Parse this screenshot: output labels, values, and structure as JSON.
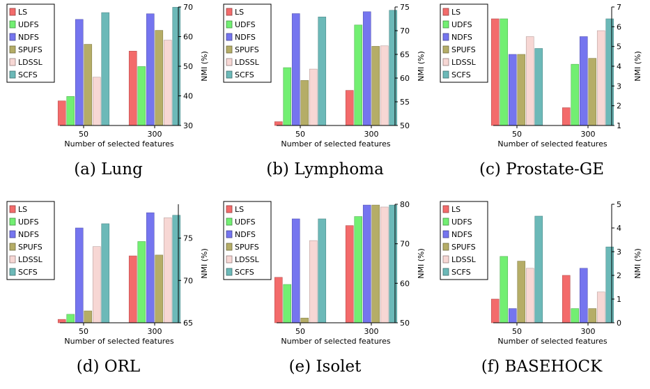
{
  "series_names": [
    "LS",
    "UDFS",
    "NDFS",
    "SPUFS",
    "LDSSL",
    "SCFS"
  ],
  "colors": [
    "#f36b6b",
    "#72ef72",
    "#7575ef",
    "#b5ad67",
    "#f7d7d4",
    "#6cb9b8"
  ],
  "xlabel": "Number of selected features",
  "ylabel": "NMI (%)",
  "chart_data": [
    {
      "type": "bar",
      "caption": "(a) Lung",
      "categories": [
        "50",
        "300"
      ],
      "series": [
        {
          "name": "LS",
          "values": [
            38.3,
            55.1
          ]
        },
        {
          "name": "UDFS",
          "values": [
            39.8,
            49.9
          ]
        },
        {
          "name": "NDFS",
          "values": [
            65.8,
            67.7
          ]
        },
        {
          "name": "SPUFS",
          "values": [
            57.4,
            62.1
          ]
        },
        {
          "name": "LDSSL",
          "values": [
            46.3,
            58.8
          ]
        },
        {
          "name": "SCFS",
          "values": [
            68.1,
            69.9
          ]
        }
      ],
      "ylim": [
        30,
        70
      ],
      "yticks": [
        30,
        40,
        50,
        60,
        70
      ],
      "legend": "top-left"
    },
    {
      "type": "bar",
      "caption": "(b) Lymphoma",
      "categories": [
        "50",
        "300"
      ],
      "series": [
        {
          "name": "LS",
          "values": [
            50.8,
            57.4
          ]
        },
        {
          "name": "UDFS",
          "values": [
            62.2,
            71.2
          ]
        },
        {
          "name": "NDFS",
          "values": [
            73.6,
            74.0
          ]
        },
        {
          "name": "SPUFS",
          "values": [
            59.5,
            66.7
          ]
        },
        {
          "name": "LDSSL",
          "values": [
            61.9,
            66.8
          ]
        },
        {
          "name": "SCFS",
          "values": [
            72.9,
            74.3
          ]
        }
      ],
      "ylim": [
        50,
        75
      ],
      "yticks": [
        50,
        55,
        60,
        65,
        70,
        75
      ],
      "legend": "top-left"
    },
    {
      "type": "bar",
      "caption": "(c) Prostate-GE",
      "categories": [
        "50",
        "300"
      ],
      "series": [
        {
          "name": "LS",
          "values": [
            6.4,
            1.9
          ]
        },
        {
          "name": "UDFS",
          "values": [
            6.4,
            4.1
          ]
        },
        {
          "name": "NDFS",
          "values": [
            4.6,
            5.5
          ]
        },
        {
          "name": "SPUFS",
          "values": [
            4.6,
            4.4
          ]
        },
        {
          "name": "LDSSL",
          "values": [
            5.5,
            5.8
          ]
        },
        {
          "name": "SCFS",
          "values": [
            4.9,
            6.4
          ]
        }
      ],
      "ylim": [
        1,
        7
      ],
      "yticks": [
        1,
        2,
        3,
        4,
        5,
        6,
        7
      ],
      "legend": "top-left"
    },
    {
      "type": "bar",
      "caption": "(d) ORL",
      "categories": [
        "50",
        "300"
      ],
      "series": [
        {
          "name": "LS",
          "values": [
            65.4,
            72.9
          ]
        },
        {
          "name": "UDFS",
          "values": [
            66.0,
            74.6
          ]
        },
        {
          "name": "NDFS",
          "values": [
            76.2,
            78.0
          ]
        },
        {
          "name": "SPUFS",
          "values": [
            66.4,
            73.0
          ]
        },
        {
          "name": "LDSSL",
          "values": [
            74.0,
            77.4
          ]
        },
        {
          "name": "SCFS",
          "values": [
            76.7,
            77.7
          ]
        }
      ],
      "ylim": [
        65,
        79
      ],
      "yticks": [
        65,
        70,
        75
      ],
      "legend": "top-left"
    },
    {
      "type": "bar",
      "caption": "(e) Isolet",
      "categories": [
        "50",
        "300"
      ],
      "series": [
        {
          "name": "LS",
          "values": [
            61.5,
            74.6
          ]
        },
        {
          "name": "UDFS",
          "values": [
            59.7,
            76.9
          ]
        },
        {
          "name": "NDFS",
          "values": [
            76.3,
            79.8
          ]
        },
        {
          "name": "SPUFS",
          "values": [
            51.2,
            79.8
          ]
        },
        {
          "name": "LDSSL",
          "values": [
            70.8,
            79.3
          ]
        },
        {
          "name": "SCFS",
          "values": [
            76.3,
            79.8
          ]
        }
      ],
      "ylim": [
        50,
        80
      ],
      "yticks": [
        50,
        60,
        70,
        80
      ],
      "legend": "top-left"
    },
    {
      "type": "bar",
      "caption": "(f) BASEHOCK",
      "categories": [
        "50",
        "300"
      ],
      "series": [
        {
          "name": "LS",
          "values": [
            1.0,
            2.0
          ]
        },
        {
          "name": "UDFS",
          "values": [
            2.8,
            0.6
          ]
        },
        {
          "name": "NDFS",
          "values": [
            0.6,
            2.3
          ]
        },
        {
          "name": "SPUFS",
          "values": [
            2.6,
            0.6
          ]
        },
        {
          "name": "LDSSL",
          "values": [
            2.3,
            1.3
          ]
        },
        {
          "name": "SCFS",
          "values": [
            4.5,
            3.2
          ]
        }
      ],
      "ylim": [
        0,
        5
      ],
      "yticks": [
        0,
        1,
        2,
        3,
        4,
        5
      ],
      "legend": "top-left"
    }
  ]
}
